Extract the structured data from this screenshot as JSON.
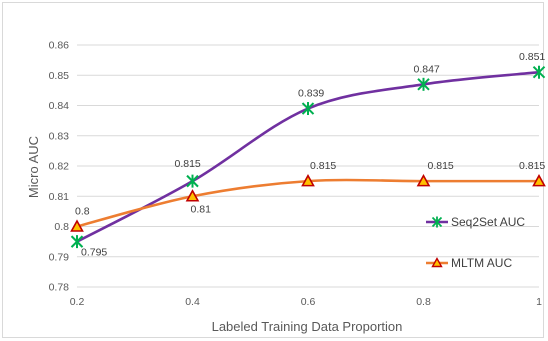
{
  "chart_data": {
    "type": "line",
    "xlabel": "Labeled Training Data Proportion",
    "ylabel": "Micro AUC",
    "xlim": [
      0.2,
      1
    ],
    "ylim": [
      0.78,
      0.86
    ],
    "x_ticks": [
      "0.2",
      "0.4",
      "0.6",
      "0.8",
      "1"
    ],
    "y_ticks": [
      "0.78",
      "0.79",
      "0.8",
      "0.81",
      "0.82",
      "0.83",
      "0.84",
      "0.85",
      "0.86"
    ],
    "grid": "horizontal",
    "legend_position": "right",
    "series": [
      {
        "name": "Seq2Set AUC",
        "x": [
          0.2,
          0.4,
          0.6,
          0.8,
          1
        ],
        "values": [
          0.795,
          0.815,
          0.839,
          0.847,
          0.851
        ],
        "labels": [
          "0.795",
          "0.815",
          "0.839",
          "0.847",
          "0.851"
        ],
        "color": "#7030a0",
        "marker_color": "#00b050",
        "marker": "asterisk"
      },
      {
        "name": "MLTM AUC",
        "x": [
          0.2,
          0.4,
          0.6,
          0.8,
          1
        ],
        "values": [
          0.8,
          0.81,
          0.815,
          0.815,
          0.815
        ],
        "labels": [
          "0.8",
          "0.81",
          "0.815",
          "0.815",
          "0.815"
        ],
        "color": "#ed7d31",
        "marker_color": "#c00000",
        "marker_fill": "#ffc000",
        "marker": "triangle"
      }
    ]
  }
}
